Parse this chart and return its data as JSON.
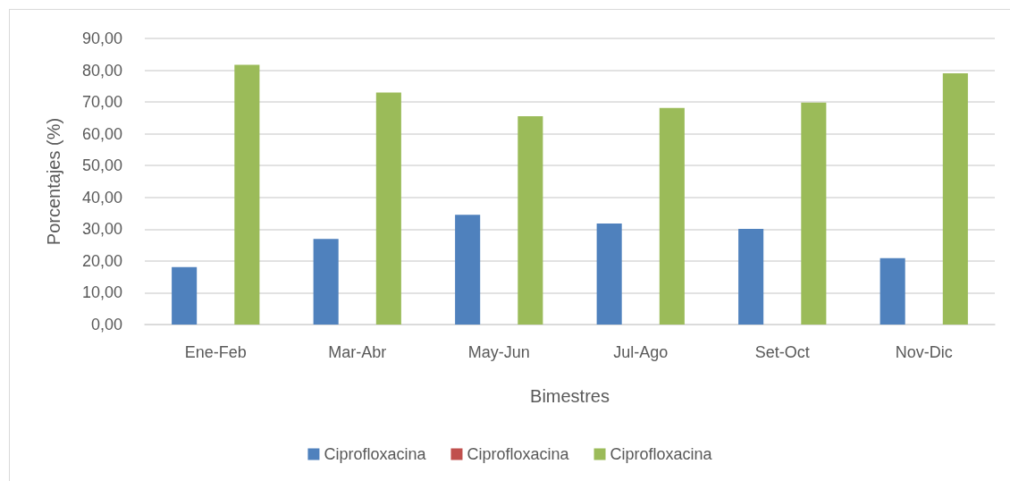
{
  "chart_data": {
    "type": "bar",
    "xlabel": "Bimestres",
    "ylabel": "Porcentajes (%)",
    "categories": [
      "Ene-Feb",
      "Mar-Abr",
      "May-Jun",
      "Jul-Ago",
      "Set-Oct",
      "Nov-Dic"
    ],
    "series": [
      {
        "name": "Ciprofloxacina",
        "color": "#4f81bd",
        "values": [
          18.1,
          26.9,
          34.5,
          31.8,
          30.1,
          20.9
        ]
      },
      {
        "name": "Ciprofloxacina",
        "color": "#c0504d",
        "values": [
          null,
          null,
          null,
          null,
          null,
          null
        ]
      },
      {
        "name": "Ciprofloxacina",
        "color": "#9bbb59",
        "values": [
          81.7,
          73.0,
          65.5,
          68.1,
          69.8,
          79.0
        ]
      }
    ],
    "ylim": [
      0,
      90
    ],
    "yticks": [
      {
        "value": 0,
        "label": "0,00"
      },
      {
        "value": 10,
        "label": "10,00"
      },
      {
        "value": 20,
        "label": "20,00"
      },
      {
        "value": 30,
        "label": "30,00"
      },
      {
        "value": 40,
        "label": "40,00"
      },
      {
        "value": 50,
        "label": "50,00"
      },
      {
        "value": 60,
        "label": "60,00"
      },
      {
        "value": 70,
        "label": "70,00"
      },
      {
        "value": 80,
        "label": "80,00"
      },
      {
        "value": 90,
        "label": "90,00"
      }
    ],
    "grid": "y",
    "legend": "bottom"
  }
}
